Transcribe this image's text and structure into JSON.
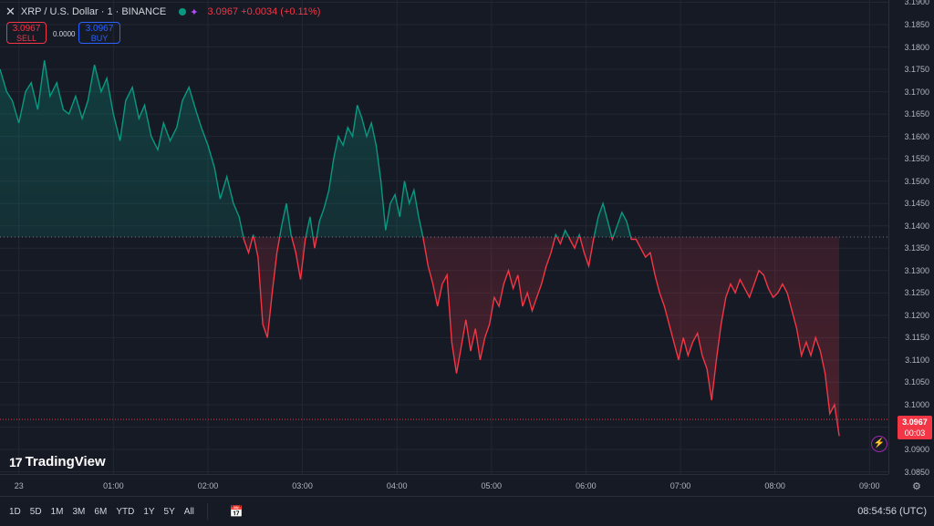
{
  "header": {
    "symbol_title": "XRP / U.S. Dollar · 1 · BINANCE",
    "last_price_change": "3.0967 +0.0034 (+0.11%)",
    "sell_price": "3.0967",
    "sell_label": "SELL",
    "spread": "0.0000",
    "buy_price": "3.0967",
    "buy_label": "BUY"
  },
  "price_axis": {
    "ticks": [
      "3.1900",
      "3.1850",
      "3.1800",
      "3.1750",
      "3.1700",
      "3.1650",
      "3.1600",
      "3.1550",
      "3.1500",
      "3.1450",
      "3.1400",
      "3.1350",
      "3.1300",
      "3.1250",
      "3.1200",
      "3.1150",
      "3.1100",
      "3.1050",
      "3.1000",
      "3.0950",
      "3.0900",
      "3.0850"
    ],
    "current_price": "3.0967",
    "countdown": "00:03"
  },
  "time_axis": {
    "ticks": [
      "23",
      "01:00",
      "02:00",
      "03:00",
      "04:00",
      "05:00",
      "06:00",
      "07:00",
      "08:00",
      "09:00"
    ]
  },
  "logo": {
    "text": "TradingView"
  },
  "bottom_bar": {
    "ranges": [
      "1D",
      "5D",
      "1M",
      "3M",
      "6M",
      "YTD",
      "1Y",
      "5Y",
      "All"
    ],
    "clock": "08:54:56 (UTC)"
  },
  "colors": {
    "up": "#089981",
    "down": "#f23645",
    "background": "#161a25",
    "grid": "#232733"
  },
  "chart_data": {
    "type": "area",
    "baseline": 3.1375,
    "ylim": [
      3.0845,
      3.1905
    ],
    "xlim": [
      -0.2,
      9.2
    ],
    "x_tick_labels": [
      "23",
      "01:00",
      "02:00",
      "03:00",
      "04:00",
      "05:00",
      "06:00",
      "07:00",
      "08:00",
      "09:00"
    ],
    "points": [
      [
        -0.2,
        3.175
      ],
      [
        -0.13,
        3.17
      ],
      [
        -0.07,
        3.168
      ],
      [
        0.0,
        3.163
      ],
      [
        0.07,
        3.17
      ],
      [
        0.13,
        3.172
      ],
      [
        0.2,
        3.166
      ],
      [
        0.27,
        3.177
      ],
      [
        0.33,
        3.169
      ],
      [
        0.4,
        3.172
      ],
      [
        0.47,
        3.166
      ],
      [
        0.53,
        3.165
      ],
      [
        0.6,
        3.169
      ],
      [
        0.67,
        3.164
      ],
      [
        0.73,
        3.168
      ],
      [
        0.8,
        3.176
      ],
      [
        0.87,
        3.17
      ],
      [
        0.93,
        3.173
      ],
      [
        1.0,
        3.165
      ],
      [
        1.07,
        3.159
      ],
      [
        1.13,
        3.168
      ],
      [
        1.2,
        3.171
      ],
      [
        1.27,
        3.164
      ],
      [
        1.33,
        3.167
      ],
      [
        1.4,
        3.16
      ],
      [
        1.47,
        3.157
      ],
      [
        1.53,
        3.163
      ],
      [
        1.6,
        3.159
      ],
      [
        1.67,
        3.162
      ],
      [
        1.73,
        3.168
      ],
      [
        1.8,
        3.171
      ],
      [
        1.87,
        3.166
      ],
      [
        1.93,
        3.162
      ],
      [
        2.0,
        3.158
      ],
      [
        2.07,
        3.153
      ],
      [
        2.13,
        3.146
      ],
      [
        2.2,
        3.151
      ],
      [
        2.27,
        3.145
      ],
      [
        2.33,
        3.142
      ],
      [
        2.38,
        3.137
      ],
      [
        2.43,
        3.134
      ],
      [
        2.48,
        3.138
      ],
      [
        2.53,
        3.133
      ],
      [
        2.58,
        3.118
      ],
      [
        2.63,
        3.115
      ],
      [
        2.68,
        3.125
      ],
      [
        2.73,
        3.134
      ],
      [
        2.78,
        3.14
      ],
      [
        2.83,
        3.145
      ],
      [
        2.88,
        3.138
      ],
      [
        2.93,
        3.134
      ],
      [
        2.98,
        3.128
      ],
      [
        3.03,
        3.137
      ],
      [
        3.08,
        3.142
      ],
      [
        3.13,
        3.135
      ],
      [
        3.18,
        3.141
      ],
      [
        3.23,
        3.144
      ],
      [
        3.28,
        3.148
      ],
      [
        3.33,
        3.155
      ],
      [
        3.38,
        3.16
      ],
      [
        3.43,
        3.158
      ],
      [
        3.48,
        3.162
      ],
      [
        3.53,
        3.16
      ],
      [
        3.58,
        3.167
      ],
      [
        3.63,
        3.164
      ],
      [
        3.68,
        3.16
      ],
      [
        3.73,
        3.163
      ],
      [
        3.78,
        3.158
      ],
      [
        3.83,
        3.15
      ],
      [
        3.88,
        3.139
      ],
      [
        3.93,
        3.145
      ],
      [
        3.98,
        3.147
      ],
      [
        4.03,
        3.142
      ],
      [
        4.08,
        3.15
      ],
      [
        4.13,
        3.145
      ],
      [
        4.18,
        3.148
      ],
      [
        4.23,
        3.142
      ],
      [
        4.28,
        3.137
      ],
      [
        4.33,
        3.131
      ],
      [
        4.38,
        3.127
      ],
      [
        4.43,
        3.122
      ],
      [
        4.48,
        3.127
      ],
      [
        4.53,
        3.129
      ],
      [
        4.58,
        3.114
      ],
      [
        4.63,
        3.107
      ],
      [
        4.68,
        3.113
      ],
      [
        4.73,
        3.119
      ],
      [
        4.78,
        3.112
      ],
      [
        4.83,
        3.117
      ],
      [
        4.88,
        3.11
      ],
      [
        4.93,
        3.115
      ],
      [
        4.98,
        3.118
      ],
      [
        5.03,
        3.124
      ],
      [
        5.08,
        3.122
      ],
      [
        5.13,
        3.127
      ],
      [
        5.18,
        3.13
      ],
      [
        5.23,
        3.126
      ],
      [
        5.28,
        3.129
      ],
      [
        5.33,
        3.122
      ],
      [
        5.38,
        3.125
      ],
      [
        5.43,
        3.121
      ],
      [
        5.48,
        3.124
      ],
      [
        5.53,
        3.127
      ],
      [
        5.58,
        3.131
      ],
      [
        5.63,
        3.134
      ],
      [
        5.68,
        3.138
      ],
      [
        5.73,
        3.136
      ],
      [
        5.78,
        3.139
      ],
      [
        5.83,
        3.137
      ],
      [
        5.88,
        3.135
      ],
      [
        5.93,
        3.138
      ],
      [
        5.98,
        3.134
      ],
      [
        6.03,
        3.131
      ],
      [
        6.08,
        3.137
      ],
      [
        6.13,
        3.142
      ],
      [
        6.18,
        3.145
      ],
      [
        6.23,
        3.141
      ],
      [
        6.28,
        3.137
      ],
      [
        6.33,
        3.14
      ],
      [
        6.38,
        3.143
      ],
      [
        6.43,
        3.141
      ],
      [
        6.48,
        3.137
      ],
      [
        6.53,
        3.137
      ],
      [
        6.58,
        3.135
      ],
      [
        6.63,
        3.133
      ],
      [
        6.68,
        3.134
      ],
      [
        6.73,
        3.129
      ],
      [
        6.78,
        3.125
      ],
      [
        6.83,
        3.122
      ],
      [
        6.88,
        3.118
      ],
      [
        6.93,
        3.114
      ],
      [
        6.98,
        3.11
      ],
      [
        7.03,
        3.115
      ],
      [
        7.08,
        3.111
      ],
      [
        7.13,
        3.114
      ],
      [
        7.18,
        3.116
      ],
      [
        7.23,
        3.111
      ],
      [
        7.28,
        3.108
      ],
      [
        7.33,
        3.101
      ],
      [
        7.38,
        3.11
      ],
      [
        7.43,
        3.118
      ],
      [
        7.48,
        3.124
      ],
      [
        7.53,
        3.127
      ],
      [
        7.58,
        3.125
      ],
      [
        7.63,
        3.128
      ],
      [
        7.68,
        3.126
      ],
      [
        7.73,
        3.124
      ],
      [
        7.78,
        3.127
      ],
      [
        7.83,
        3.13
      ],
      [
        7.88,
        3.129
      ],
      [
        7.93,
        3.126
      ],
      [
        7.98,
        3.124
      ],
      [
        8.03,
        3.125
      ],
      [
        8.08,
        3.127
      ],
      [
        8.13,
        3.125
      ],
      [
        8.18,
        3.121
      ],
      [
        8.23,
        3.117
      ],
      [
        8.28,
        3.111
      ],
      [
        8.33,
        3.114
      ],
      [
        8.38,
        3.111
      ],
      [
        8.43,
        3.115
      ],
      [
        8.48,
        3.112
      ],
      [
        8.53,
        3.107
      ],
      [
        8.58,
        3.098
      ],
      [
        8.63,
        3.1
      ],
      [
        8.68,
        3.093
      ]
    ]
  }
}
